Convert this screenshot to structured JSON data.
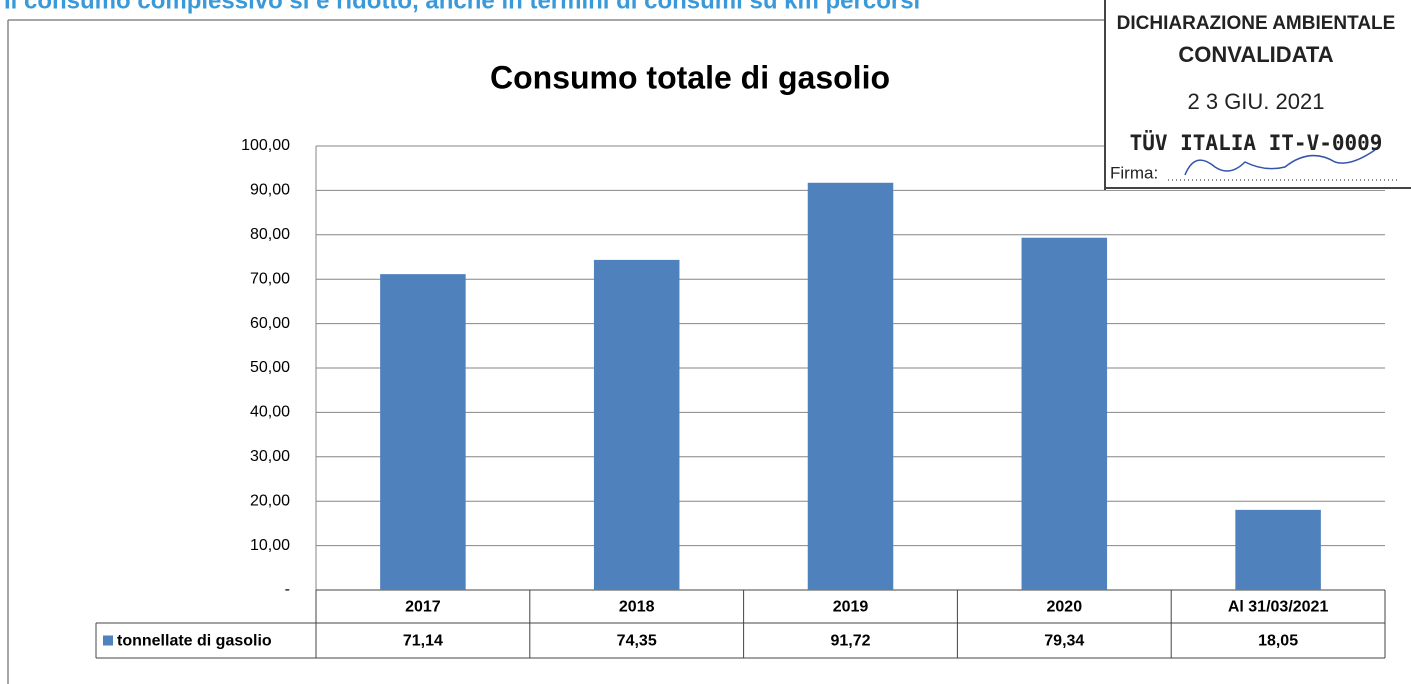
{
  "header": {
    "text": "Il consumo complessivo si è ridotto, anche in termini di consumi su km percorsi"
  },
  "stamp": {
    "line1": "DICHIARAZIONE AMBIENTALE",
    "line2": "CONVALIDATA",
    "date": "2 3 GIU. 2021",
    "code": "TÜV ITALIA IT-V-0009",
    "sign": "Firma:"
  },
  "chart_data": {
    "type": "bar",
    "title": "Consumo totale di gasolio",
    "categories": [
      "2017",
      "2018",
      "2019",
      "2020",
      "Al 31/03/2021"
    ],
    "series": [
      {
        "name": "tonnellate di gasolio",
        "color": "#4f81bd",
        "values": [
          71.14,
          74.35,
          91.72,
          79.34,
          18.05
        ],
        "value_labels": [
          "71,14",
          "74,35",
          "91,72",
          "79,34",
          "18,05"
        ]
      }
    ],
    "ylim": [
      0,
      100
    ],
    "yticks": [
      {
        "value": 0,
        "label": "-"
      },
      {
        "value": 10,
        "label": "10,00"
      },
      {
        "value": 20,
        "label": "20,00"
      },
      {
        "value": 30,
        "label": "30,00"
      },
      {
        "value": 40,
        "label": "40,00"
      },
      {
        "value": 50,
        "label": "50,00"
      },
      {
        "value": 60,
        "label": "60,00"
      },
      {
        "value": 70,
        "label": "70,00"
      },
      {
        "value": 80,
        "label": "80,00"
      },
      {
        "value": 90,
        "label": "90,00"
      },
      {
        "value": 100,
        "label": "100,00"
      }
    ],
    "grid": true
  }
}
